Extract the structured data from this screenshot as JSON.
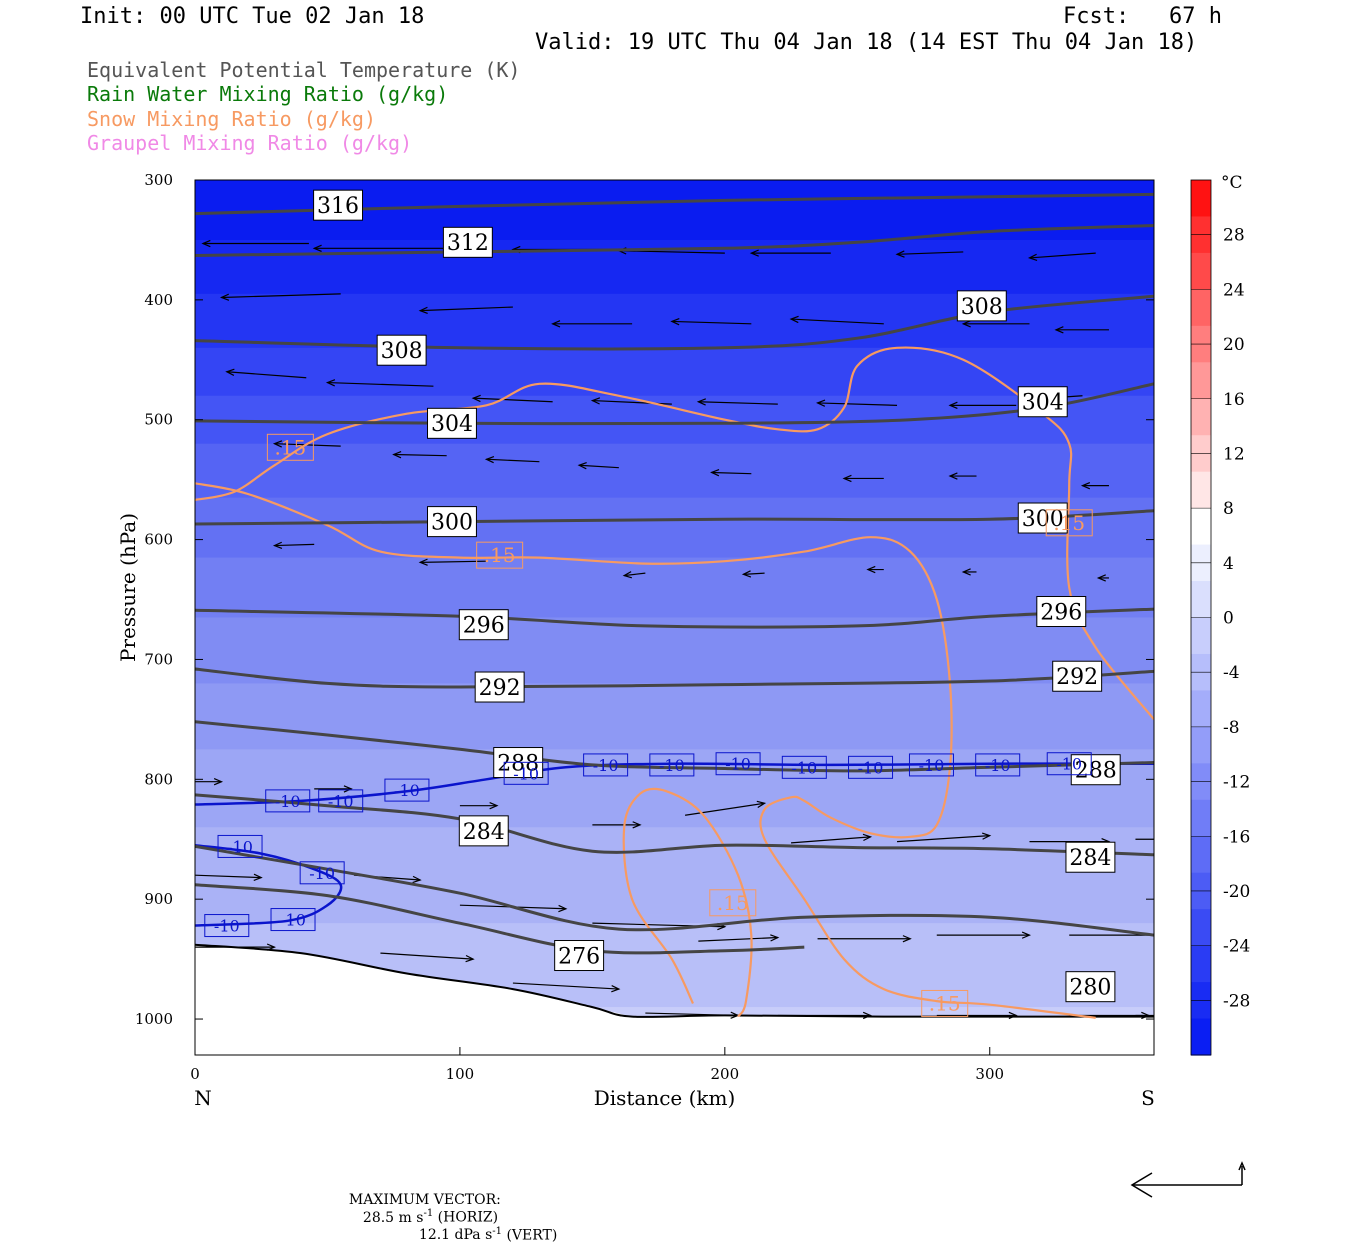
{
  "header": {
    "init": "Init: 00 UTC Tue 02 Jan 18",
    "fcst": "Fcst:   67 h",
    "valid": "Valid: 19 UTC Thu 04 Jan 18 (14 EST Thu 04 Jan 18)"
  },
  "legend": [
    {
      "label": "Equivalent Potential Temperature (K)",
      "color": "#555555"
    },
    {
      "label": "Rain Water Mixing Ratio (g/kg)",
      "color": "#0a7a0a"
    },
    {
      "label": "Snow Mixing Ratio (g/kg)",
      "color": "#f79a62"
    },
    {
      "label": "Graupel Mixing Ratio (g/kg)",
      "color": "#f089e6"
    }
  ],
  "chart_data": {
    "type": "cross-section",
    "xlabel": "Distance (km)",
    "ylabel": "Pressure (hPa)",
    "x_ticks": [
      "0",
      "100",
      "200",
      "300"
    ],
    "y_ticks": [
      "300",
      "400",
      "500",
      "600",
      "700",
      "800",
      "900",
      "1000"
    ],
    "x_range": [
      0,
      362
    ],
    "y_range": [
      300,
      1030
    ],
    "x_end_labels": {
      "left": "N",
      "right": "S"
    },
    "colorbar": {
      "unit": "°C",
      "labels": [
        "28",
        "24",
        "20",
        "16",
        "12",
        "8",
        "4",
        "0",
        "-4",
        "-8",
        "-12",
        "-16",
        "-20",
        "-24",
        "-28"
      ],
      "range": [
        -32,
        32
      ]
    },
    "theta_e_contours": [
      {
        "label": "316",
        "points": [
          [
            0,
            328
          ],
          [
            100,
            322
          ],
          [
            200,
            317
          ],
          [
            300,
            314
          ],
          [
            362,
            312
          ]
        ],
        "label_at": [
          54,
          321
        ]
      },
      {
        "label": "312",
        "points": [
          [
            0,
            363
          ],
          [
            100,
            360
          ],
          [
            200,
            357
          ],
          [
            250,
            352
          ],
          [
            300,
            343
          ],
          [
            362,
            338
          ]
        ],
        "label_at": [
          103,
          352
        ]
      },
      {
        "label": "308",
        "points": [
          [
            0,
            434
          ],
          [
            100,
            440
          ],
          [
            200,
            440
          ],
          [
            250,
            432
          ],
          [
            300,
            410
          ],
          [
            362,
            397
          ]
        ],
        "label_at": [
          78,
          442
        ]
      },
      {
        "label": "308",
        "points": [],
        "label_at": [
          297,
          405
        ]
      },
      {
        "label": "304",
        "points": [
          [
            0,
            501
          ],
          [
            100,
            503
          ],
          [
            200,
            503
          ],
          [
            270,
            500
          ],
          [
            320,
            490
          ],
          [
            362,
            470
          ]
        ],
        "label_at": [
          97,
          503
        ]
      },
      {
        "label": "304",
        "points": [],
        "label_at": [
          320,
          485
        ]
      },
      {
        "label": "300",
        "points": [
          [
            0,
            587
          ],
          [
            100,
            585
          ],
          [
            200,
            583
          ],
          [
            300,
            583
          ],
          [
            362,
            576
          ]
        ],
        "label_at": [
          97,
          585
        ]
      },
      {
        "label": "300",
        "points": [],
        "label_at": [
          320,
          582
        ]
      },
      {
        "label": "296",
        "points": [
          [
            0,
            659
          ],
          [
            100,
            664
          ],
          [
            170,
            672
          ],
          [
            250,
            672
          ],
          [
            300,
            664
          ],
          [
            362,
            658
          ]
        ],
        "label_at": [
          109,
          671
        ]
      },
      {
        "label": "296",
        "points": [],
        "label_at": [
          327,
          660
        ]
      },
      {
        "label": "292",
        "points": [
          [
            0,
            708
          ],
          [
            50,
            720
          ],
          [
            100,
            723
          ],
          [
            200,
            721
          ],
          [
            300,
            718
          ],
          [
            362,
            710
          ]
        ],
        "label_at": [
          115,
          723
        ]
      },
      {
        "label": "292",
        "points": [],
        "label_at": [
          333,
          714
        ]
      },
      {
        "label": "288",
        "points": [
          [
            0,
            752
          ],
          [
            50,
            763
          ],
          [
            100,
            775
          ],
          [
            150,
            788
          ],
          [
            200,
            791
          ],
          [
            250,
            793
          ],
          [
            300,
            790
          ],
          [
            362,
            786
          ]
        ],
        "label_at": [
          122,
          786
        ]
      },
      {
        "label": "288",
        "points": [],
        "label_at": [
          340,
          792
        ]
      },
      {
        "label": "284",
        "points": [
          [
            0,
            813
          ],
          [
            50,
            822
          ],
          [
            100,
            833
          ],
          [
            150,
            860
          ],
          [
            200,
            855
          ],
          [
            250,
            857
          ],
          [
            300,
            858
          ],
          [
            362,
            863
          ]
        ],
        "label_at": [
          109,
          843
        ]
      },
      {
        "label": "284",
        "points": [],
        "label_at": [
          338,
          865
        ]
      },
      {
        "label": "280",
        "points": [
          [
            0,
            856
          ],
          [
            50,
            875
          ],
          [
            100,
            895
          ],
          [
            160,
            925
          ],
          [
            230,
            915
          ],
          [
            300,
            915
          ],
          [
            362,
            930
          ]
        ],
        "label_at": [
          338,
          973
        ]
      },
      {
        "label": "276",
        "points": [
          [
            0,
            888
          ],
          [
            50,
            897
          ],
          [
            100,
            920
          ],
          [
            150,
            943
          ],
          [
            200,
            943
          ],
          [
            230,
            940
          ]
        ],
        "label_at": [
          145,
          947
        ]
      }
    ],
    "isotherm": {
      "label": "-10",
      "color": "#0a14cc"
    },
    "snow_contour_label": ".15",
    "footer": {
      "max_vector": "MAXIMUM VECTOR:",
      "horiz": "28.5 m s",
      "horiz_exp": "-1",
      "horiz_tag": " (HORIZ)",
      "vert": "12.1 dPa s",
      "vert_exp": "-1",
      "vert_tag": " (VERT)"
    }
  }
}
